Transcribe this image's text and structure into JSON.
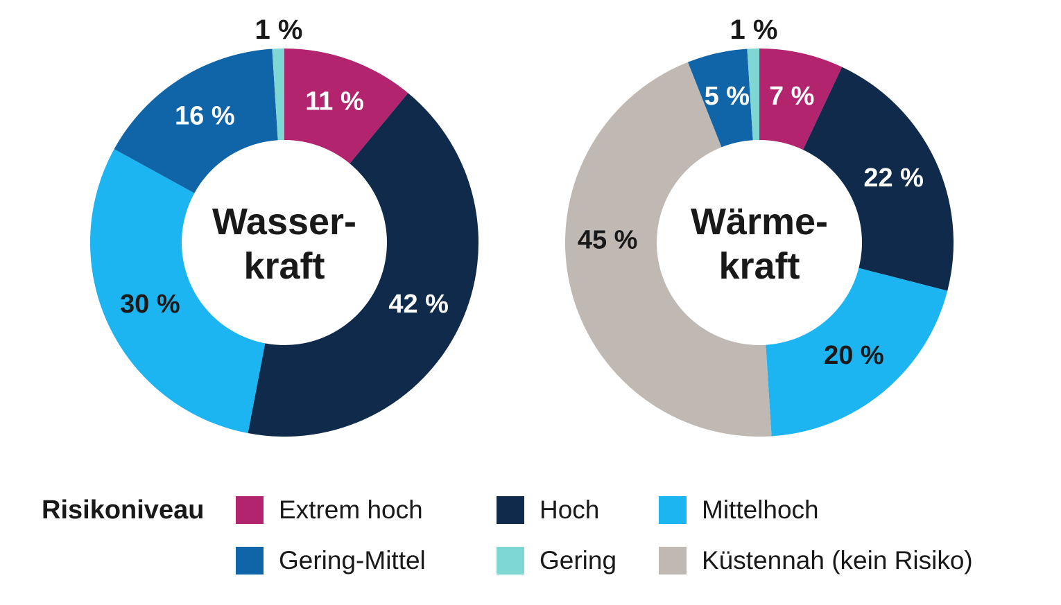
{
  "page": {
    "background": "#ffffff"
  },
  "colors": {
    "extrem_hoch": "#b3246e",
    "hoch": "#0f2a4a",
    "mittelhoch": "#1cb5f1",
    "gering_mittel": "#0f65a8",
    "gering": "#7fd7d3",
    "kuestennah": "#bfb8b3",
    "text_dark": "#191919",
    "text_light": "#ffffff"
  },
  "chart_data": [
    {
      "type": "donut",
      "title": "Wasserkraft",
      "title_lines": [
        "Wasser-",
        "kraft"
      ],
      "start_angle_deg": 0,
      "direction": "clockwise",
      "slices": [
        {
          "label": "Extrem hoch",
          "value": 11,
          "text": "11 %",
          "color": "extrem_hoch",
          "text_color": "light",
          "placement": "inside"
        },
        {
          "label": "Hoch",
          "value": 42,
          "text": "42 %",
          "color": "hoch",
          "text_color": "light",
          "placement": "inside"
        },
        {
          "label": "Mittelhoch",
          "value": 30,
          "text": "30 %",
          "color": "mittelhoch",
          "text_color": "dark",
          "placement": "inside"
        },
        {
          "label": "Gering-Mittel",
          "value": 16,
          "text": "16 %",
          "color": "gering_mittel",
          "text_color": "light",
          "placement": "inside"
        },
        {
          "label": "Gering",
          "value": 1,
          "text": "1 %",
          "color": "gering",
          "text_color": "dark",
          "placement": "outside-top"
        }
      ]
    },
    {
      "type": "donut",
      "title": "Wärmekraft",
      "title_lines": [
        "Wärme-",
        "kraft"
      ],
      "start_angle_deg": 0,
      "direction": "clockwise",
      "slices": [
        {
          "label": "Extrem hoch",
          "value": 7,
          "text": "7 %",
          "color": "extrem_hoch",
          "text_color": "light",
          "placement": "inside"
        },
        {
          "label": "Hoch",
          "value": 22,
          "text": "22 %",
          "color": "hoch",
          "text_color": "light",
          "placement": "inside"
        },
        {
          "label": "Mittelhoch",
          "value": 20,
          "text": "20 %",
          "color": "mittelhoch",
          "text_color": "dark",
          "placement": "inside"
        },
        {
          "label": "Küstennah (kein Risiko)",
          "value": 45,
          "text": "45 %",
          "color": "kuestennah",
          "text_color": "dark",
          "placement": "inside"
        },
        {
          "label": "Gering-Mittel",
          "value": 5,
          "text": "5 %",
          "color": "gering_mittel",
          "text_color": "light",
          "placement": "inside"
        },
        {
          "label": "Gering",
          "value": 1,
          "text": "1 %",
          "color": "gering",
          "text_color": "dark",
          "placement": "outside-top"
        }
      ]
    }
  ],
  "legend": {
    "title": "Risikoniveau",
    "rows": [
      [
        {
          "label": "Extrem hoch",
          "color": "extrem_hoch"
        },
        {
          "label": "Hoch",
          "color": "hoch"
        },
        {
          "label": "Mittelhoch",
          "color": "mittelhoch"
        }
      ],
      [
        {
          "label": "Gering-Mittel",
          "color": "gering_mittel"
        },
        {
          "label": "Gering",
          "color": "gering"
        },
        {
          "label": "Küstennah (kein Risiko)",
          "color": "kuestennah"
        }
      ]
    ]
  }
}
